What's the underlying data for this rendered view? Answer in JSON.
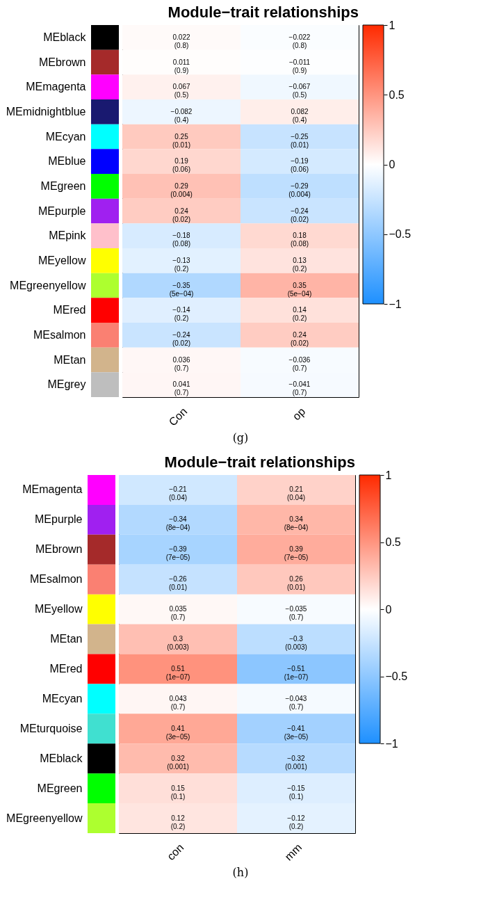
{
  "chart_data": [
    {
      "type": "heatmap",
      "title": "Module−trait relationships",
      "annotations": [
        "(g)"
      ],
      "categories": [
        "Con",
        "op"
      ],
      "y_categories": [
        "MEblack",
        "MEbrown",
        "MEmagenta",
        "MEmidnightblue",
        "MEcyan",
        "MEblue",
        "MEgreen",
        "MEpurple",
        "MEpink",
        "MEyellow",
        "MEgreenyellow",
        "MEred",
        "MEsalmon",
        "MEtan",
        "MEgrey"
      ],
      "colors": [
        "#000000",
        "#a52a2a",
        "#ff00ff",
        "#191970",
        "#00ffff",
        "#0000ff",
        "#00ff00",
        "#a020f0",
        "#ffc0cb",
        "#ffff00",
        "#adff2f",
        "#ff0000",
        "#fa8072",
        "#d2b48c",
        "#bebebe"
      ],
      "cells": [
        [
          0.022,
          -0.022
        ],
        [
          0.011,
          -0.011
        ],
        [
          0.067,
          -0.067
        ],
        [
          -0.082,
          0.082
        ],
        [
          0.25,
          -0.25
        ],
        [
          0.19,
          -0.19
        ],
        [
          0.29,
          -0.29
        ],
        [
          0.24,
          -0.24
        ],
        [
          -0.18,
          0.18
        ],
        [
          -0.13,
          0.13
        ],
        [
          -0.35,
          0.35
        ],
        [
          -0.14,
          0.14
        ],
        [
          -0.24,
          0.24
        ],
        [
          0.036,
          -0.036
        ],
        [
          0.041,
          -0.041
        ]
      ],
      "cell_labels": [
        [
          "0.022\n(0.8)",
          "−0.022\n(0.8)"
        ],
        [
          "0.011\n(0.9)",
          "−0.011\n(0.9)"
        ],
        [
          "0.067\n(0.5)",
          "−0.067\n(0.5)"
        ],
        [
          "−0.082\n(0.4)",
          "0.082\n(0.4)"
        ],
        [
          "0.25\n(0.01)",
          "−0.25\n(0.01)"
        ],
        [
          "0.19\n(0.06)",
          "−0.19\n(0.06)"
        ],
        [
          "0.29\n(0.004)",
          "−0.29\n(0.004)"
        ],
        [
          "0.24\n(0.02)",
          "−0.24\n(0.02)"
        ],
        [
          "−0.18\n(0.08)",
          "0.18\n(0.08)"
        ],
        [
          "−0.13\n(0.2)",
          "0.13\n(0.2)"
        ],
        [
          "−0.35\n(5e−04)",
          "0.35\n(5e−04)"
        ],
        [
          "−0.14\n(0.2)",
          "0.14\n(0.2)"
        ],
        [
          "−0.24\n(0.02)",
          "0.24\n(0.02)"
        ],
        [
          "0.036\n(0.7)",
          "−0.036\n(0.7)"
        ],
        [
          "0.041\n(0.7)",
          "−0.041\n(0.7)"
        ]
      ],
      "clim": [
        -1,
        1
      ],
      "cticks": [
        1,
        0.5,
        0,
        -0.5,
        -1
      ]
    },
    {
      "type": "heatmap",
      "title": "Module−trait relationships",
      "annotations": [
        "(h)"
      ],
      "categories": [
        "con",
        "mm"
      ],
      "y_categories": [
        "MEmagenta",
        "MEpurple",
        "MEbrown",
        "MEsalmon",
        "MEyellow",
        "MEtan",
        "MEred",
        "MEcyan",
        "MEturquoise",
        "MEblack",
        "MEgreen",
        "MEgreenyellow"
      ],
      "colors": [
        "#ff00ff",
        "#a020f0",
        "#a52a2a",
        "#fa8072",
        "#ffff00",
        "#d2b48c",
        "#ff0000",
        "#00ffff",
        "#40e0d0",
        "#000000",
        "#00ff00",
        "#adff2f"
      ],
      "cells": [
        [
          -0.21,
          0.21
        ],
        [
          -0.34,
          0.34
        ],
        [
          -0.39,
          0.39
        ],
        [
          -0.26,
          0.26
        ],
        [
          0.035,
          -0.035
        ],
        [
          0.3,
          -0.3
        ],
        [
          0.51,
          -0.51
        ],
        [
          0.043,
          -0.043
        ],
        [
          0.41,
          -0.41
        ],
        [
          0.32,
          -0.32
        ],
        [
          0.15,
          -0.15
        ],
        [
          0.12,
          -0.12
        ]
      ],
      "cell_labels": [
        [
          "−0.21\n(0.04)",
          "0.21\n(0.04)"
        ],
        [
          "−0.34\n(8e−04)",
          "0.34\n(8e−04)"
        ],
        [
          "−0.39\n(7e−05)",
          "0.39\n(7e−05)"
        ],
        [
          "−0.26\n(0.01)",
          "0.26\n(0.01)"
        ],
        [
          "0.035\n(0.7)",
          "−0.035\n(0.7)"
        ],
        [
          "0.3\n(0.003)",
          "−0.3\n(0.003)"
        ],
        [
          "0.51\n(1e−07)",
          "−0.51\n(1e−07)"
        ],
        [
          "0.043\n(0.7)",
          "−0.043\n(0.7)"
        ],
        [
          "0.41\n(3e−05)",
          "−0.41\n(3e−05)"
        ],
        [
          "0.32\n(0.001)",
          "−0.32\n(0.001)"
        ],
        [
          "0.15\n(0.1)",
          "−0.15\n(0.1)"
        ],
        [
          "0.12\n(0.2)",
          "−0.12\n(0.2)"
        ]
      ],
      "clim": [
        -1,
        1
      ],
      "cticks": [
        1,
        0.5,
        0,
        -0.5,
        -1
      ]
    }
  ]
}
